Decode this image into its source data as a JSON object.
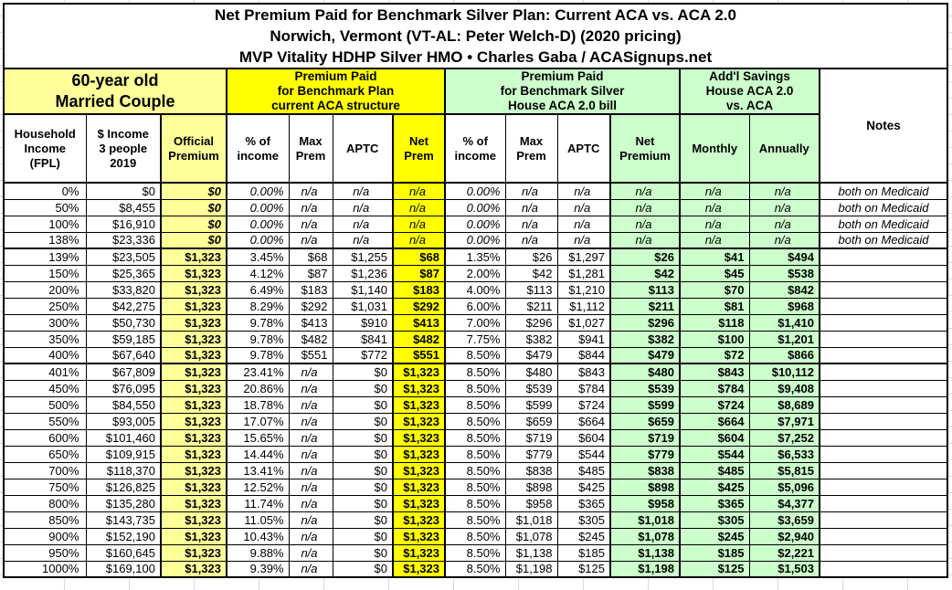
{
  "title": {
    "line1": "Net Premium Paid for Benchmark Silver Plan: Current ACA vs. ACA 2.0",
    "line2": "Norwich, Vermont (VT-AL: Peter Welch-D) (2020 pricing)",
    "line3": "MVP Vitality HDHP Silver HMO • Charles Gaba / ACASignups.net"
  },
  "group_headers": {
    "demographic": "60-year old\nMarried Couple",
    "current_aca": "Premium Paid\nfor Benchmark Plan\ncurrent ACA structure",
    "aca_2_0": "Premium Paid\nfor Benchmark Silver\nHouse ACA 2.0 bill",
    "savings": "Add'l Savings\nHouse ACA 2.0\nvs. ACA",
    "notes": "Notes"
  },
  "column_headers": [
    "Household\nIncome\n(FPL)",
    "$ Income\n3 people\n2019",
    "Official\nPremium",
    "% of\nincome",
    "Max\nPrem",
    "APTC",
    "Net\nPrem",
    "% of\nincome",
    "Max\nPrem",
    "APTC",
    "Net\nPremium",
    "Monthly",
    "Annually"
  ],
  "rows": [
    [
      "0%",
      "$0",
      "$0",
      "0.00%",
      "n/a",
      "n/a",
      "n/a",
      "0.00%",
      "n/a",
      "n/a",
      "n/a",
      "n/a",
      "n/a",
      "both on Medicaid"
    ],
    [
      "50%",
      "$8,455",
      "$0",
      "0.00%",
      "n/a",
      "n/a",
      "n/a",
      "0.00%",
      "n/a",
      "n/a",
      "n/a",
      "n/a",
      "n/a",
      "both on Medicaid"
    ],
    [
      "100%",
      "$16,910",
      "$0",
      "0.00%",
      "n/a",
      "n/a",
      "n/a",
      "0.00%",
      "n/a",
      "n/a",
      "n/a",
      "n/a",
      "n/a",
      "both on Medicaid"
    ],
    [
      "138%",
      "$23,336",
      "$0",
      "0.00%",
      "n/a",
      "n/a",
      "n/a",
      "0.00%",
      "n/a",
      "n/a",
      "n/a",
      "n/a",
      "n/a",
      "both on Medicaid"
    ],
    [
      "139%",
      "$23,505",
      "$1,323",
      "3.45%",
      "$68",
      "$1,255",
      "$68",
      "1.35%",
      "$26",
      "$1,297",
      "$26",
      "$41",
      "$494",
      ""
    ],
    [
      "150%",
      "$25,365",
      "$1,323",
      "4.12%",
      "$87",
      "$1,236",
      "$87",
      "2.00%",
      "$42",
      "$1,281",
      "$42",
      "$45",
      "$538",
      ""
    ],
    [
      "200%",
      "$33,820",
      "$1,323",
      "6.49%",
      "$183",
      "$1,140",
      "$183",
      "4.00%",
      "$113",
      "$1,210",
      "$113",
      "$70",
      "$842",
      ""
    ],
    [
      "250%",
      "$42,275",
      "$1,323",
      "8.29%",
      "$292",
      "$1,031",
      "$292",
      "6.00%",
      "$211",
      "$1,112",
      "$211",
      "$81",
      "$968",
      ""
    ],
    [
      "300%",
      "$50,730",
      "$1,323",
      "9.78%",
      "$413",
      "$910",
      "$413",
      "7.00%",
      "$296",
      "$1,027",
      "$296",
      "$118",
      "$1,410",
      ""
    ],
    [
      "350%",
      "$59,185",
      "$1,323",
      "9.78%",
      "$482",
      "$841",
      "$482",
      "7.75%",
      "$382",
      "$941",
      "$382",
      "$100",
      "$1,201",
      ""
    ],
    [
      "400%",
      "$67,640",
      "$1,323",
      "9.78%",
      "$551",
      "$772",
      "$551",
      "8.50%",
      "$479",
      "$844",
      "$479",
      "$72",
      "$866",
      ""
    ],
    [
      "401%",
      "$67,809",
      "$1,323",
      "23.41%",
      "n/a",
      "$0",
      "$1,323",
      "8.50%",
      "$480",
      "$843",
      "$480",
      "$843",
      "$10,112",
      ""
    ],
    [
      "450%",
      "$76,095",
      "$1,323",
      "20.86%",
      "n/a",
      "$0",
      "$1,323",
      "8.50%",
      "$539",
      "$784",
      "$539",
      "$784",
      "$9,408",
      ""
    ],
    [
      "500%",
      "$84,550",
      "$1,323",
      "18.78%",
      "n/a",
      "$0",
      "$1,323",
      "8.50%",
      "$599",
      "$724",
      "$599",
      "$724",
      "$8,689",
      ""
    ],
    [
      "550%",
      "$93,005",
      "$1,323",
      "17.07%",
      "n/a",
      "$0",
      "$1,323",
      "8.50%",
      "$659",
      "$664",
      "$659",
      "$664",
      "$7,971",
      ""
    ],
    [
      "600%",
      "$101,460",
      "$1,323",
      "15.65%",
      "n/a",
      "$0",
      "$1,323",
      "8.50%",
      "$719",
      "$604",
      "$719",
      "$604",
      "$7,252",
      ""
    ],
    [
      "650%",
      "$109,915",
      "$1,323",
      "14.44%",
      "n/a",
      "$0",
      "$1,323",
      "8.50%",
      "$779",
      "$544",
      "$779",
      "$544",
      "$6,533",
      ""
    ],
    [
      "700%",
      "$118,370",
      "$1,323",
      "13.41%",
      "n/a",
      "$0",
      "$1,323",
      "8.50%",
      "$838",
      "$485",
      "$838",
      "$485",
      "$5,815",
      ""
    ],
    [
      "750%",
      "$126,825",
      "$1,323",
      "12.52%",
      "n/a",
      "$0",
      "$1,323",
      "8.50%",
      "$898",
      "$425",
      "$898",
      "$425",
      "$5,096",
      ""
    ],
    [
      "800%",
      "$135,280",
      "$1,323",
      "11.74%",
      "n/a",
      "$0",
      "$1,323",
      "8.50%",
      "$958",
      "$365",
      "$958",
      "$365",
      "$4,377",
      ""
    ],
    [
      "850%",
      "$143,735",
      "$1,323",
      "11.05%",
      "n/a",
      "$0",
      "$1,323",
      "8.50%",
      "$1,018",
      "$305",
      "$1,018",
      "$305",
      "$3,659",
      ""
    ],
    [
      "900%",
      "$152,190",
      "$1,323",
      "10.43%",
      "n/a",
      "$0",
      "$1,323",
      "8.50%",
      "$1,078",
      "$245",
      "$1,078",
      "$245",
      "$2,940",
      ""
    ],
    [
      "950%",
      "$160,645",
      "$1,323",
      "9.88%",
      "n/a",
      "$0",
      "$1,323",
      "8.50%",
      "$1,138",
      "$185",
      "$1,138",
      "$185",
      "$2,221",
      ""
    ],
    [
      "1000%",
      "$169,100",
      "$1,323",
      "9.39%",
      "n/a",
      "$0",
      "$1,323",
      "8.50%",
      "$1,198",
      "$125",
      "$1,198",
      "$125",
      "$1,503",
      ""
    ]
  ],
  "medicaid_rows": [
    0,
    1,
    2,
    3
  ],
  "section_break_after_rows": [
    3,
    10
  ],
  "na_text": "n/a",
  "colors": {
    "light_yellow": "#FFFF99",
    "bright_yellow": "#FFFF00",
    "light_green": "#CCFFCC",
    "border": "#000000",
    "gridline": "#D9D9D9"
  }
}
